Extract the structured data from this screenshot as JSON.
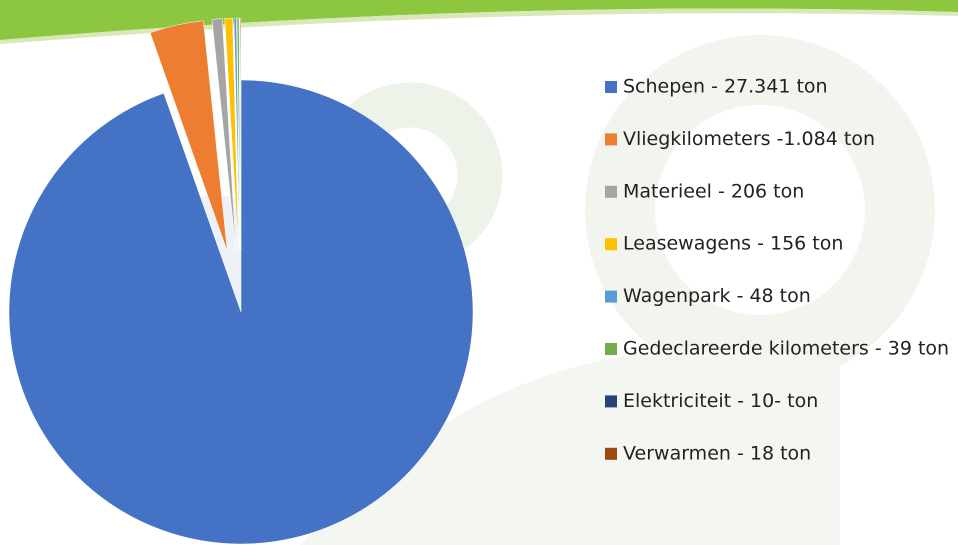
{
  "chart_data": {
    "type": "pie",
    "categories": [
      "Schepen - 27.341 ton",
      "Vliegkilometers -1.084 ton",
      "Materieel - 206 ton",
      "Leasewagens - 156 ton",
      "Wagenpark - 48 ton",
      "Gedeclareerde kilometers - 39 ton",
      "Elektriciteit - 10- ton",
      "Verwarmen - 18 ton"
    ],
    "values": [
      27341,
      1084,
      206,
      156,
      48,
      39,
      10,
      18
    ],
    "colors": [
      "#4472c4",
      "#ed7d31",
      "#a5a5a5",
      "#ffc000",
      "#5b9bd5",
      "#70ad47",
      "#264478",
      "#9e480e"
    ],
    "legend": "right"
  }
}
